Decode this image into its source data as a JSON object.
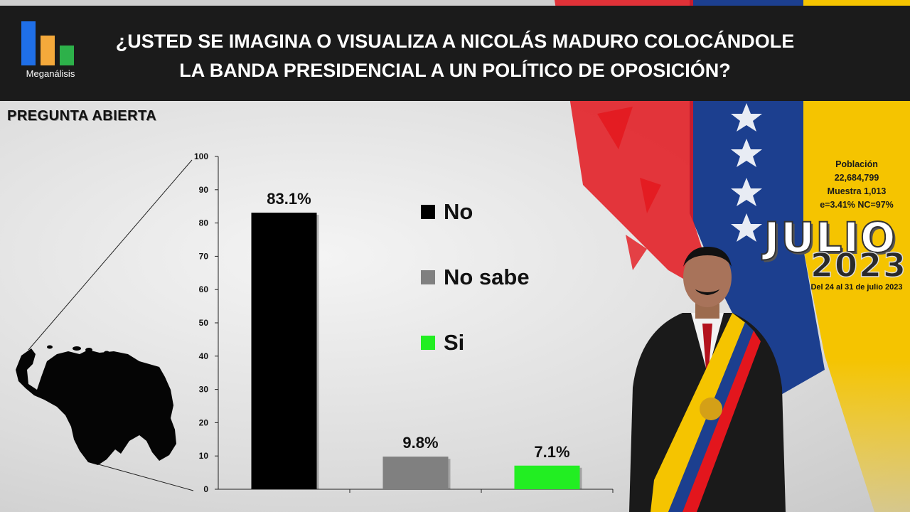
{
  "header": {
    "logo_text": "Meganálisis",
    "title_line1": "¿USTED SE IMAGINA O VISUALIZA A NICOLÁS MADURO COLOCÁNDOLE",
    "title_line2": "LA BANDA PRESIDENCIAL  A UN POLÍTICO DE OPOSICIÓN?"
  },
  "subtitle": "PREGUNTA  ABIERTA",
  "chart_data": {
    "type": "bar",
    "categories": [
      "No",
      "No sabe",
      "Si"
    ],
    "values": [
      83.1,
      9.8,
      7.1
    ],
    "value_labels": [
      "83.1%",
      "9.8%",
      "7.1%"
    ],
    "colors": [
      "#000000",
      "#808080",
      "#22ee22"
    ],
    "ylim": [
      0,
      100
    ],
    "yticks": [
      "0",
      "10",
      "20",
      "30",
      "40",
      "50",
      "60",
      "70",
      "80",
      "90",
      "100"
    ],
    "grid": false,
    "legend_position": "center-right"
  },
  "legend": [
    {
      "label": "No",
      "color": "#000000"
    },
    {
      "label": "No sabe",
      "color": "#808080"
    },
    {
      "label": "Si",
      "color": "#22ee22"
    }
  ],
  "stats": {
    "line1": "Población",
    "line2": "22,684,799",
    "line3": "Muestra 1,013",
    "line4": "e=3.41%  NC=97%"
  },
  "period": {
    "month": "JULIO",
    "year": "2023",
    "dates": "Del 24 al 31 de julio 2023"
  },
  "colors": {
    "header_bg": "#1b1b1b",
    "flag_yellow": "#f5c400",
    "flag_blue": "#1c3f8f",
    "flag_red": "#e3161d",
    "logo_blue": "#1f6fe8",
    "logo_orange": "#f4a93b",
    "logo_green": "#2db14a"
  }
}
